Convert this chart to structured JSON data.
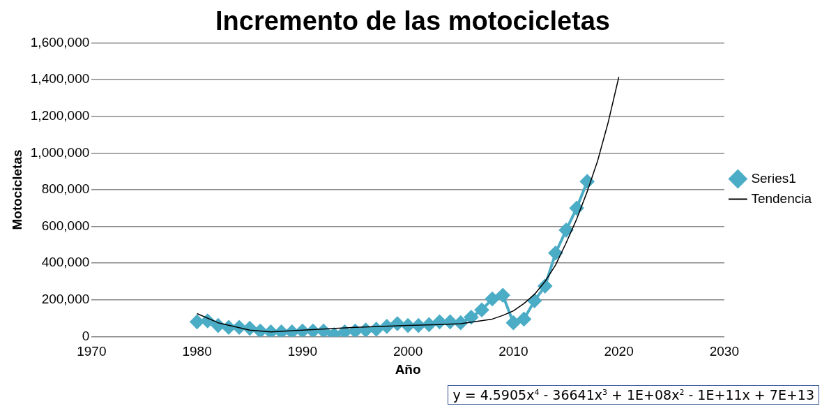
{
  "chart_data": {
    "type": "line",
    "title": "Incremento de las motocicletas",
    "xlabel": "Año",
    "ylabel": "Motocicletas",
    "x": [
      1980,
      1981,
      1982,
      1983,
      1984,
      1985,
      1986,
      1987,
      1988,
      1989,
      1990,
      1991,
      1992,
      1993,
      1994,
      1995,
      1996,
      1997,
      1998,
      1999,
      2000,
      2001,
      2002,
      2003,
      2004,
      2005,
      2006,
      2007,
      2008,
      2009,
      2010,
      2011,
      2012,
      2013,
      2014,
      2015,
      2016,
      2017
    ],
    "series": [
      {
        "name": "Series1",
        "color": "#4bacc6",
        "marker": "diamond",
        "values": [
          80000,
          85000,
          60000,
          50000,
          50000,
          45000,
          30000,
          25000,
          25000,
          25000,
          30000,
          30000,
          30000,
          10000,
          25000,
          30000,
          35000,
          40000,
          55000,
          70000,
          60000,
          60000,
          65000,
          80000,
          80000,
          75000,
          105000,
          145000,
          205000,
          225000,
          75000,
          95000,
          195000,
          275000,
          455000,
          580000,
          700000,
          845000
        ]
      },
      {
        "name": "Tendencia",
        "type": "line",
        "color": "#000000",
        "marker": "none",
        "x": [
          1980,
          1982,
          1985,
          1987,
          1990,
          1995,
          2000,
          2003,
          2005,
          2008,
          2009,
          2010,
          2011,
          2012,
          2013,
          2014,
          2015,
          2016,
          2017,
          2018,
          2019,
          2020
        ],
        "values": [
          125000,
          75000,
          35000,
          25000,
          35000,
          50000,
          60000,
          65000,
          70000,
          95000,
          115000,
          140000,
          180000,
          230000,
          300000,
          390000,
          510000,
          640000,
          790000,
          960000,
          1170000,
          1415000
        ]
      }
    ],
    "xlim": [
      1970,
      2030
    ],
    "xticks": [
      1970,
      1980,
      1990,
      2000,
      2010,
      2020,
      2030
    ],
    "ylim": [
      0,
      1600000
    ],
    "yticks": [
      0,
      {
        "value": 200000,
        "label": "200,000"
      },
      {
        "value": 400000,
        "label": "400,000"
      },
      {
        "value": 600000,
        "label": "600,000"
      },
      {
        "value": 800000,
        "label": "800,000"
      },
      {
        "value": 1000000,
        "label": "1,000,000"
      },
      {
        "value": 1200000,
        "label": "1,200,000"
      },
      {
        "value": 1400000,
        "label": "1,400,000"
      },
      {
        "value": 1600000,
        "label": "1,600,000"
      }
    ],
    "grid": "y",
    "legend": "right",
    "annotations": [
      "y = 4.5905x$^{4}$ - 36641x$^{3}$ + 1E+08x$^{2}$ - 1E+11x + 7E+13"
    ]
  }
}
